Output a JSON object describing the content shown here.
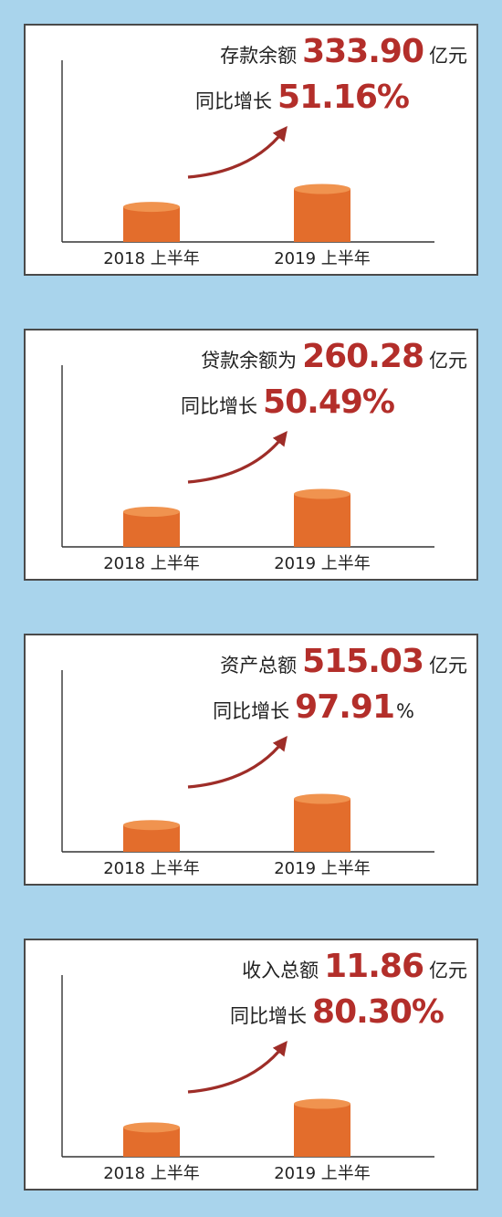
{
  "background_color": "#a9d4ec",
  "bar_color": "#e36d2c",
  "bar_top_color": "#f0934f",
  "value_color": "#b32e2a",
  "arrow_color": "#9e2d28",
  "chart_data": [
    {
      "type": "bar",
      "categories": [
        "2018 上半年",
        "2019 上半年"
      ],
      "values": [
        0.662,
        1.0
      ],
      "value_unit": "relative to 2019 H1 (derived from growth)",
      "headline": {
        "label": "存款余额",
        "value": "333.90",
        "unit": "亿元"
      },
      "growth": {
        "label": "同比增长",
        "value": "51.16%",
        "unit": ""
      }
    },
    {
      "type": "bar",
      "categories": [
        "2018 上半年",
        "2019 上半年"
      ],
      "values": [
        0.664,
        1.0
      ],
      "value_unit": "relative to 2019 H1 (derived from growth)",
      "headline": {
        "label": "贷款余额为",
        "value": "260.28",
        "unit": "亿元"
      },
      "growth": {
        "label": "同比增长",
        "value": "50.49%",
        "unit": ""
      }
    },
    {
      "type": "bar",
      "categories": [
        "2018 上半年",
        "2019 上半年"
      ],
      "values": [
        0.505,
        1.0
      ],
      "value_unit": "relative to 2019 H1 (derived from growth)",
      "headline": {
        "label": "资产总额",
        "value": "515.03",
        "unit": "亿元"
      },
      "growth": {
        "label": "同比增长",
        "value": "97.91",
        "unit": "%"
      }
    },
    {
      "type": "bar",
      "categories": [
        "2018 上半年",
        "2019 上半年"
      ],
      "values": [
        0.554,
        1.0
      ],
      "value_unit": "relative to 2019 H1 (derived from growth)",
      "headline": {
        "label": "收入总额",
        "value": "11.86",
        "unit": "亿元"
      },
      "growth": {
        "label": "同比增长",
        "value": "80.30%",
        "unit": ""
      }
    }
  ]
}
